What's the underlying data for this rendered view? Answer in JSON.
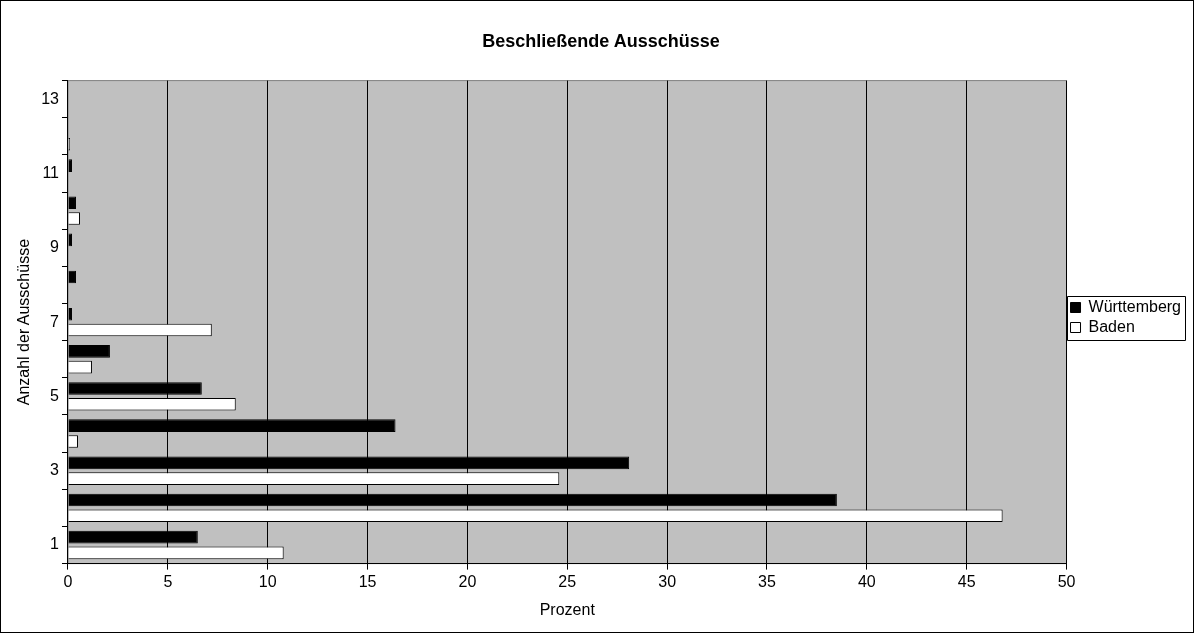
{
  "chart_data": {
    "type": "bar",
    "orientation": "horizontal",
    "title": "Beschließende Ausschüsse",
    "xlabel": "Prozent",
    "ylabel": "Anzahl der Ausschüsse",
    "categories": [
      "13",
      null,
      "11",
      null,
      "9",
      null,
      "7",
      null,
      "5",
      null,
      "3",
      null,
      "1"
    ],
    "series": [
      {
        "name": "Württemberg",
        "color": "#000000",
        "values": [
          null,
          null,
          0.2,
          0.4,
          0.2,
          0.4,
          0.2,
          2.1,
          6.7,
          16.4,
          28.1,
          38.5,
          6.5
        ]
      },
      {
        "name": "Baden",
        "color": "#ffffff",
        "values": [
          null,
          0.1,
          null,
          0.6,
          null,
          null,
          7.2,
          1.2,
          8.4,
          0.5,
          24.6,
          46.8,
          10.8
        ]
      }
    ],
    "xlim": [
      0,
      50
    ],
    "xticks": [
      0,
      5,
      10,
      15,
      20,
      25,
      30,
      35,
      40,
      45,
      50
    ],
    "grid": "x",
    "legend": "right"
  }
}
